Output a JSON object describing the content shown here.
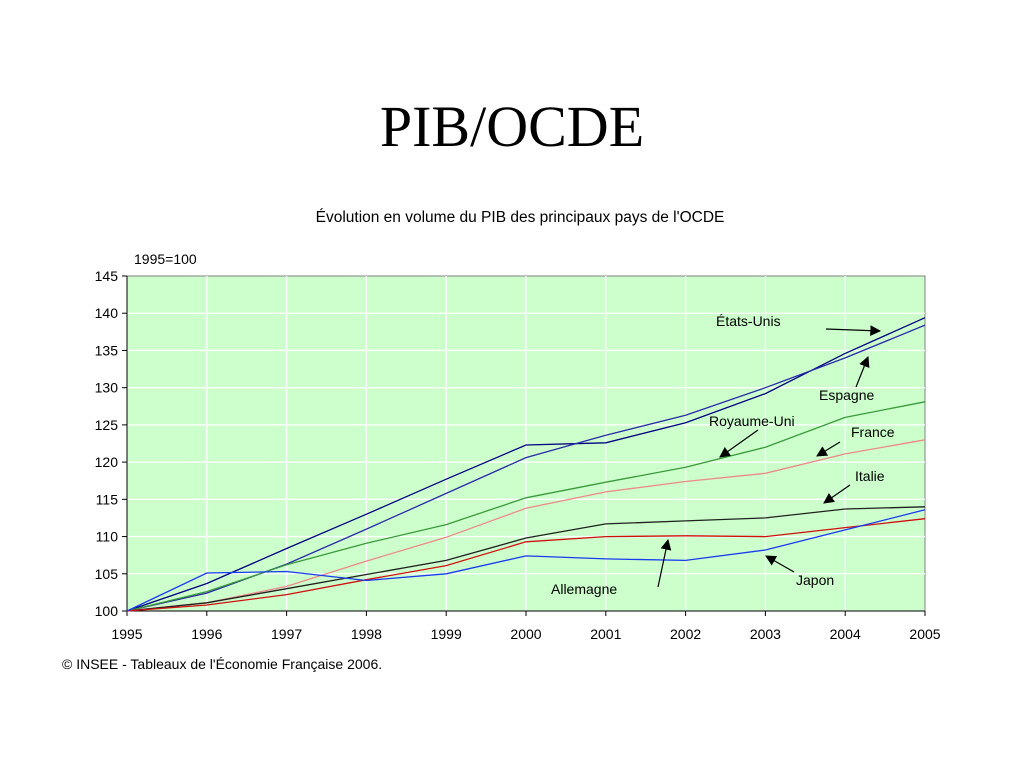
{
  "slide": {
    "title": "PIB/OCDE"
  },
  "chart_data": {
    "type": "line",
    "title": "Évolution en volume du PIB des principaux pays de l'OCDE",
    "ylabel": "1995=100",
    "source": "© INSEE - Tableaux de l'Économie Française 2006.",
    "x": [
      "1995",
      "1996",
      "1997",
      "1998",
      "1999",
      "2000",
      "2001",
      "2002",
      "2003",
      "2004",
      "2005"
    ],
    "yticks": [
      "100",
      "105",
      "110",
      "115",
      "120",
      "125",
      "130",
      "135",
      "140",
      "145"
    ],
    "ylim": [
      100,
      145
    ],
    "grid": true,
    "plot_background": "#ccffcc",
    "series": [
      {
        "name": "États-Unis",
        "color": "#000080",
        "values": [
          100,
          103.7,
          108.4,
          113.0,
          117.7,
          122.3,
          122.6,
          125.3,
          129.2,
          134.6,
          139.4
        ]
      },
      {
        "name": "Espagne",
        "color": "#2a2aa8",
        "values": [
          100,
          102.4,
          106.3,
          111.0,
          115.8,
          120.6,
          123.6,
          126.3,
          130.0,
          134.0,
          138.4
        ]
      },
      {
        "name": "Royaume-Uni",
        "color": "#3a9a3a",
        "values": [
          100,
          102.6,
          106.2,
          109.1,
          111.6,
          115.2,
          117.3,
          119.3,
          122.0,
          126.0,
          128.1
        ]
      },
      {
        "name": "France",
        "color": "#ee8888",
        "values": [
          100,
          101.1,
          103.3,
          106.7,
          109.9,
          113.8,
          116.0,
          117.4,
          118.5,
          121.1,
          123.0
        ]
      },
      {
        "name": "Italie",
        "color": "#202020",
        "values": [
          100,
          101.1,
          103.0,
          104.9,
          106.8,
          109.8,
          111.7,
          112.1,
          112.5,
          113.7,
          114.0
        ]
      },
      {
        "name": "Allemagne",
        "color": "#d01010",
        "values": [
          100,
          100.8,
          102.2,
          104.2,
          106.1,
          109.3,
          110.0,
          110.1,
          110.0,
          111.2,
          112.4
        ]
      },
      {
        "name": "Japon",
        "color": "#1a3aee",
        "values": [
          100,
          105.1,
          105.3,
          104.1,
          105.0,
          107.4,
          107.0,
          106.8,
          108.2,
          110.9,
          113.6
        ]
      }
    ],
    "annotations": [
      {
        "text": "États-Unis",
        "series": "États-Unis"
      },
      {
        "text": "Espagne",
        "series": "Espagne"
      },
      {
        "text": "Royaume-Uni",
        "series": "Royaume-Uni"
      },
      {
        "text": "France",
        "series": "France"
      },
      {
        "text": "Italie",
        "series": "Italie"
      },
      {
        "text": "Allemagne",
        "series": "Allemagne"
      },
      {
        "text": "Japon",
        "series": "Japon"
      }
    ]
  }
}
